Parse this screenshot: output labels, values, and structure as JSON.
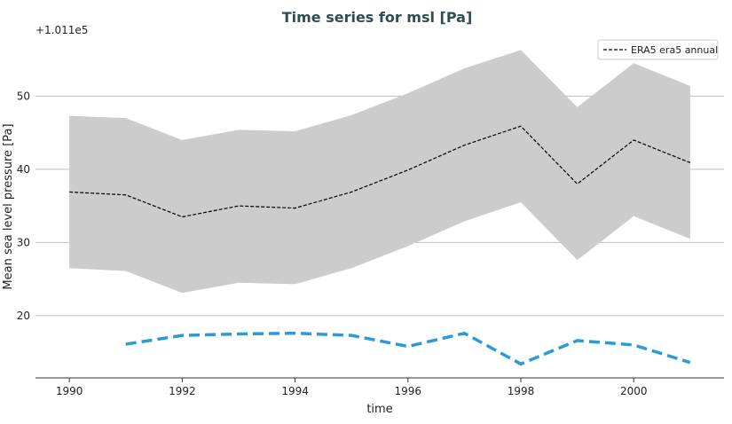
{
  "chart_data": {
    "type": "line",
    "title": "Time series for msl [Pa]",
    "offset_label": "+1.011e5",
    "xlabel": "time",
    "ylabel": "Mean sea level pressure [Pa]",
    "xlim": [
      1989.4,
      2001.6
    ],
    "ylim": [
      11.5,
      59.5
    ],
    "x_ticks": [
      1990,
      1992,
      1994,
      1996,
      1998,
      2000
    ],
    "y_ticks": [
      20,
      30,
      40,
      50
    ],
    "grid": true,
    "legend_position": "top-right",
    "series": [
      {
        "name": "ERA5 era5 annual",
        "style": "dashed",
        "color": "#000000",
        "x": [
          1990,
          1991,
          1992,
          1993,
          1994,
          1995,
          1996,
          1997,
          1998,
          1999,
          2000,
          2001
        ],
        "values": [
          36.9,
          36.5,
          33.5,
          35.0,
          34.7,
          36.9,
          39.9,
          43.3,
          45.9,
          38.0,
          44.0,
          40.9
        ],
        "band_upper": [
          47.3,
          47.0,
          44.0,
          45.4,
          45.2,
          47.4,
          50.4,
          53.8,
          56.3,
          48.5,
          54.5,
          51.4
        ],
        "band_lower": [
          26.5,
          26.1,
          23.1,
          24.5,
          24.3,
          26.5,
          29.5,
          32.9,
          35.5,
          27.6,
          33.6,
          30.5
        ],
        "band_color": "#cccccc"
      },
      {
        "style": "dashed-thick",
        "color": "#2a9ad9",
        "x": [
          1991,
          1992,
          1993,
          1994,
          1995,
          1996,
          1997,
          1998,
          1999,
          2000,
          2001
        ],
        "values": [
          16.1,
          17.3,
          17.5,
          17.6,
          17.3,
          15.8,
          17.6,
          13.4,
          16.6,
          16.0,
          13.6
        ]
      }
    ]
  }
}
